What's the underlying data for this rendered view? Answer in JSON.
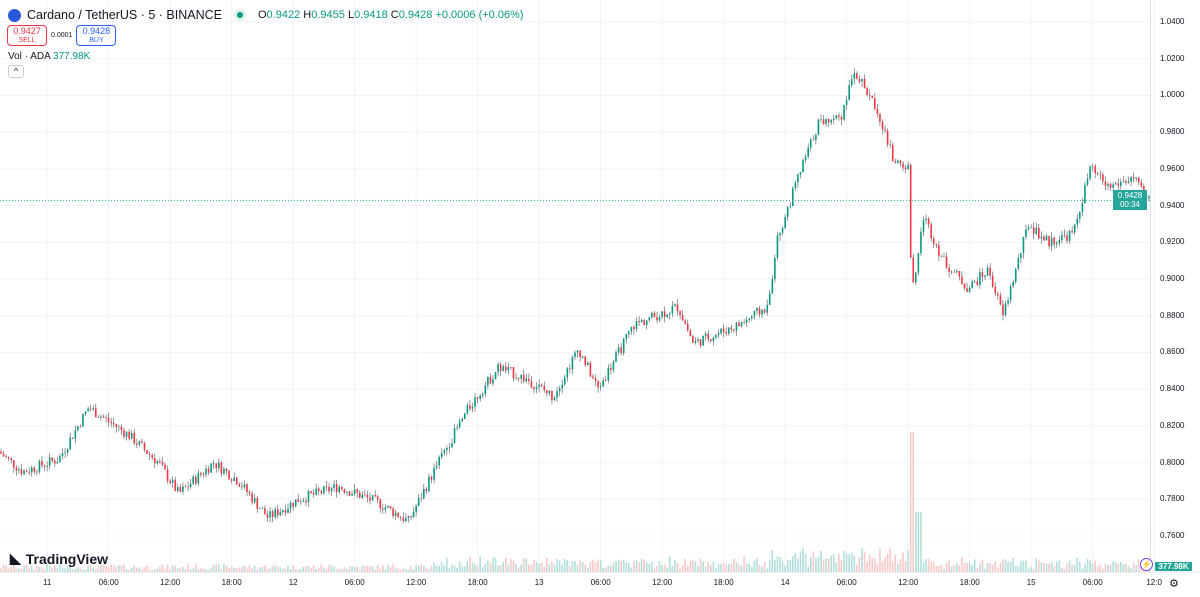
{
  "header": {
    "symbol": "Cardano / TetherUS · 5 · BINANCE",
    "open_label": "O",
    "open": "0.9422",
    "high_label": "H",
    "high": "0.9455",
    "low_label": "L",
    "low": "0.9418",
    "close_label": "C",
    "close": "0.9428",
    "change": "+0.0006 (+0.06%)"
  },
  "trade": {
    "sell_price": "0.9427",
    "sell_label": "SELL",
    "spread": "0.0001",
    "buy_price": "0.9428",
    "buy_label": "BUY"
  },
  "volume": {
    "label": "Vol · ADA",
    "value": "377.98K"
  },
  "collapse_label": "^",
  "brand": "TradingView",
  "last_price": {
    "price": "0.9428",
    "countdown": "00:34"
  },
  "colors": {
    "up": "#089981",
    "down": "#f23645",
    "badge": "#26a69a"
  },
  "chart_data": {
    "type": "candlestick",
    "interval_minutes": 5,
    "price_ticks": [
      "1.0400",
      "1.0200",
      "1.0000",
      "0.9800",
      "0.9600",
      "0.9400",
      "0.9200",
      "0.9000",
      "0.8800",
      "0.8600",
      "0.8400",
      "0.8200",
      "0.8000",
      "0.7800",
      "0.7600"
    ],
    "ylim": [
      0.7545,
      1.045
    ],
    "time_ticks": [
      "11",
      "06:00",
      "12:00",
      "18:00",
      "12",
      "06:00",
      "12:00",
      "18:00",
      "13",
      "06:00",
      "12:00",
      "18:00",
      "14",
      "06:00",
      "12:00",
      "18:00",
      "15",
      "06:00",
      "12:0"
    ],
    "time_tick_hours": [
      4.6,
      10.6,
      16.6,
      22.6,
      28.6,
      34.6,
      40.6,
      46.6,
      52.6,
      58.6,
      64.6,
      70.6,
      76.6,
      82.6,
      88.6,
      94.6,
      100.6,
      106.6,
      112.6
    ],
    "price_path_hours_price": [
      [
        0,
        0.806
      ],
      [
        2.4,
        0.795
      ],
      [
        5.9,
        0.802
      ],
      [
        8.8,
        0.83
      ],
      [
        12.7,
        0.815
      ],
      [
        15.6,
        0.8
      ],
      [
        17.6,
        0.783
      ],
      [
        21,
        0.8
      ],
      [
        23.4,
        0.79
      ],
      [
        26.3,
        0.77
      ],
      [
        29.3,
        0.78
      ],
      [
        33.2,
        0.787
      ],
      [
        37.1,
        0.778
      ],
      [
        40,
        0.768
      ],
      [
        42.9,
        0.8
      ],
      [
        45.9,
        0.83
      ],
      [
        48.8,
        0.852
      ],
      [
        51.7,
        0.845
      ],
      [
        54.1,
        0.836
      ],
      [
        56.6,
        0.862
      ],
      [
        58.5,
        0.84
      ],
      [
        62,
        0.875
      ],
      [
        66.3,
        0.885
      ],
      [
        67.8,
        0.865
      ],
      [
        72.2,
        0.875
      ],
      [
        75.1,
        0.885
      ],
      [
        75.9,
        0.92
      ],
      [
        78,
        0.955
      ],
      [
        80,
        0.985
      ],
      [
        82.4,
        0.99
      ],
      [
        83.4,
        1.015
      ],
      [
        85.9,
        0.99
      ],
      [
        87.3,
        0.965
      ],
      [
        88.8,
        0.96
      ],
      [
        89.1,
        0.89
      ],
      [
        90.2,
        0.935
      ],
      [
        92.2,
        0.91
      ],
      [
        94.6,
        0.895
      ],
      [
        96.6,
        0.905
      ],
      [
        98,
        0.88
      ],
      [
        100.5,
        0.93
      ],
      [
        102.4,
        0.92
      ],
      [
        104.9,
        0.925
      ],
      [
        106.5,
        0.96
      ],
      [
        108.3,
        0.95
      ],
      [
        110.7,
        0.955
      ],
      [
        112,
        0.943
      ]
    ],
    "last": 0.9428
  }
}
